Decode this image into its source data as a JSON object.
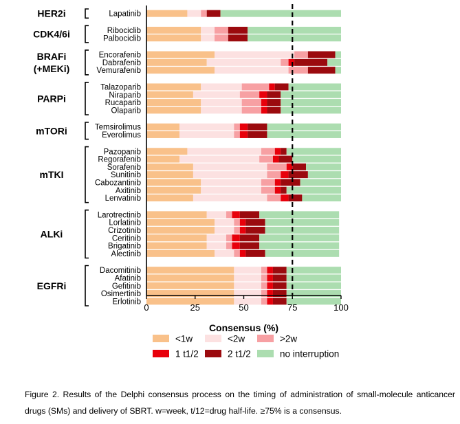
{
  "chart_data": {
    "type": "bar",
    "stacked": true,
    "orientation": "horizontal",
    "xlabel": "Consensus (%)",
    "xlim": [
      0,
      100
    ],
    "xticks": [
      "0",
      "25",
      "50",
      "75",
      "100"
    ],
    "threshold": 75,
    "legend_position": "bottom",
    "series": [
      {
        "name": "<1w",
        "color": "#f9c18a"
      },
      {
        "name": "<2w",
        "color": "#fce1e1"
      },
      {
        "name": ">2w",
        "color": "#f7a0a3"
      },
      {
        "name": "1 t1/2",
        "color": "#e8000b"
      },
      {
        "name": "2 t1/2",
        "color": "#9b0a0e"
      },
      {
        "name": "no interruption",
        "color": "#acddb0"
      }
    ],
    "groups": [
      {
        "name": "HER2i",
        "drugs": [
          {
            "name": "Lapatinib",
            "values": [
              21,
              7,
              3,
              0,
              7,
              62
            ]
          }
        ]
      },
      {
        "name": "CDK4/6i",
        "drugs": [
          {
            "name": "Ribociclib",
            "values": [
              28,
              7,
              7,
              0,
              10,
              48
            ]
          },
          {
            "name": "Palbociclib",
            "values": [
              28,
              7,
              7,
              0,
              10,
              48
            ]
          }
        ]
      },
      {
        "name": "BRAFi\n(+MEKi)",
        "drugs": [
          {
            "name": "Encorafenib",
            "values": [
              35,
              41,
              7,
              0,
              14,
              3
            ]
          },
          {
            "name": "Dabrafenib",
            "values": [
              31,
              38,
              4,
              3,
              17,
              7
            ]
          },
          {
            "name": "Vemurafenib",
            "values": [
              35,
              38,
              10,
              0,
              14,
              3
            ]
          }
        ]
      },
      {
        "name": "PARPi",
        "drugs": [
          {
            "name": "Talazoparib",
            "values": [
              28,
              21,
              14,
              3,
              7,
              27
            ]
          },
          {
            "name": "Niraparib",
            "values": [
              24,
              24,
              10,
              4,
              7,
              31
            ]
          },
          {
            "name": "Rucaparib",
            "values": [
              28,
              21,
              10,
              3,
              7,
              31
            ]
          },
          {
            "name": "Olaparib",
            "values": [
              28,
              21,
              10,
              3,
              7,
              31
            ]
          }
        ]
      },
      {
        "name": "mTORi",
        "drugs": [
          {
            "name": "Temsirolimus",
            "values": [
              17,
              28,
              3,
              4,
              10,
              38
            ]
          },
          {
            "name": "Everolimus",
            "values": [
              17,
              28,
              3,
              4,
              10,
              38
            ]
          }
        ]
      },
      {
        "name": "mTKI",
        "drugs": [
          {
            "name": "Pazopanib",
            "values": [
              21,
              38,
              7,
              3,
              3,
              28
            ]
          },
          {
            "name": "Regorafenib",
            "values": [
              17,
              41,
              7,
              3,
              7,
              25
            ]
          },
          {
            "name": "Sorafenib",
            "values": [
              24,
              38,
              10,
              3,
              7,
              18
            ]
          },
          {
            "name": "Sunitinib",
            "values": [
              24,
              38,
              7,
              4,
              10,
              17
            ]
          },
          {
            "name": "Cabozantinib",
            "values": [
              28,
              31,
              7,
              3,
              10,
              21
            ]
          },
          {
            "name": "Axitinib",
            "values": [
              28,
              31,
              7,
              3,
              3,
              28
            ]
          },
          {
            "name": "Lenvatinib",
            "values": [
              24,
              38,
              7,
              4,
              7,
              20
            ]
          }
        ]
      },
      {
        "name": "ALKi",
        "drugs": [
          {
            "name": "Larotrectinib",
            "values": [
              31,
              10,
              3,
              4,
              10,
              41
            ]
          },
          {
            "name": "Lorlatinib",
            "values": [
              35,
              10,
              3,
              3,
              10,
              38
            ]
          },
          {
            "name": "Crizotinib",
            "values": [
              35,
              10,
              3,
              3,
              10,
              38
            ]
          },
          {
            "name": "Ceritinib",
            "values": [
              31,
              10,
              3,
              4,
              10,
              41
            ]
          },
          {
            "name": "Brigatinib",
            "values": [
              31,
              10,
              3,
              4,
              10,
              41
            ]
          },
          {
            "name": "Alectinib",
            "values": [
              35,
              10,
              3,
              3,
              10,
              38
            ]
          }
        ]
      },
      {
        "name": "EGFRi",
        "drugs": [
          {
            "name": "Dacomitinib",
            "values": [
              45,
              14,
              3,
              3,
              7,
              28
            ]
          },
          {
            "name": "Afatinib",
            "values": [
              45,
              14,
              3,
              3,
              7,
              28
            ]
          },
          {
            "name": "Gefitinib",
            "values": [
              45,
              14,
              3,
              3,
              7,
              28
            ]
          },
          {
            "name": "Osimertinib",
            "values": [
              45,
              14,
              3,
              3,
              7,
              28
            ]
          },
          {
            "name": "Erlotinib",
            "values": [
              45,
              14,
              3,
              3,
              7,
              28
            ]
          }
        ]
      }
    ]
  },
  "caption": "Figure 2. Results of the Delphi consensus process on the timing of administration of small-molecule anticancer drugs (SMs) and delivery of SBRT. w=week, t/12=drug half-life. ≥75% is a consensus."
}
